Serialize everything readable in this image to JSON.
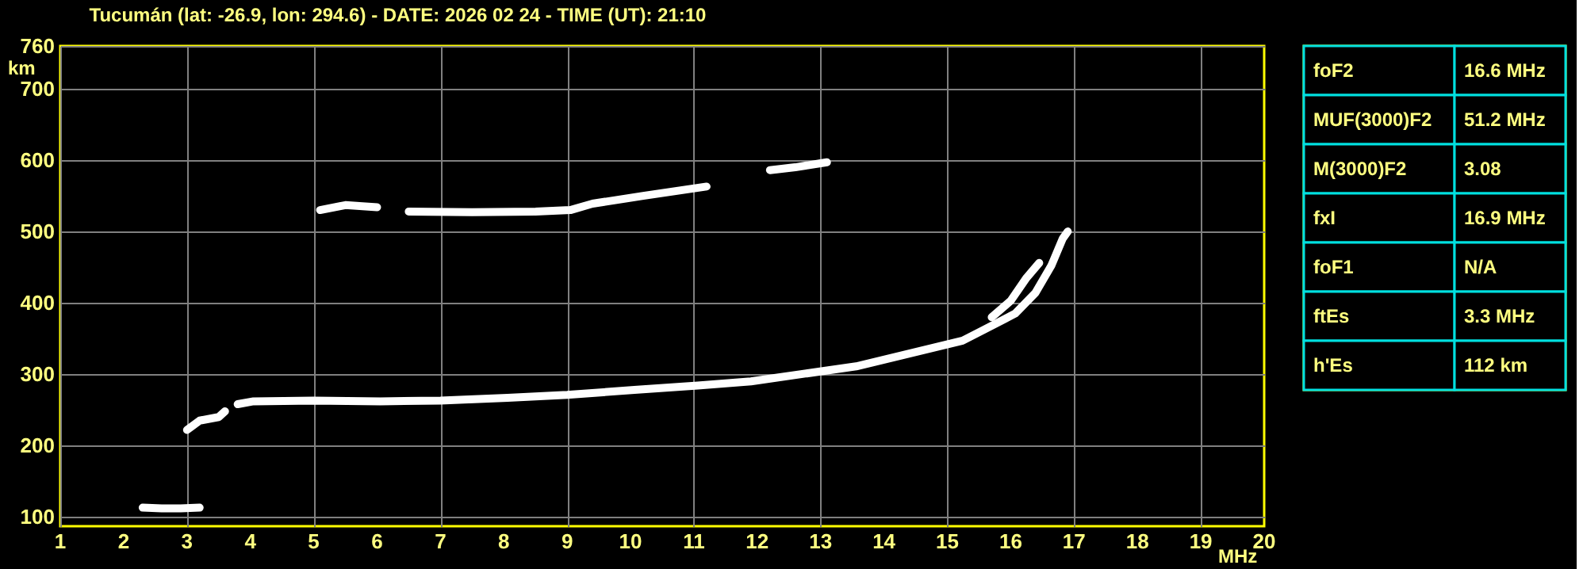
{
  "chart_data": [
    {
      "type": "line",
      "title": "Tucumán (lat: -26.9, lon: 294.6) - DATE: 2026 02 24 - TIME (UT): 21:10",
      "xlabel": "MHz",
      "ylabel": "km",
      "xlim": [
        1,
        20
      ],
      "xticks": [
        1,
        2,
        3,
        4,
        5,
        6,
        7,
        8,
        9,
        10,
        11,
        12,
        13,
        14,
        15,
        16,
        17,
        18,
        19,
        20
      ],
      "ylim": [
        87,
        760
      ],
      "yticks": [
        100,
        200,
        300,
        400,
        500,
        600,
        700,
        760
      ],
      "grid": true,
      "series": [
        {
          "color": "#ffffff",
          "x": [
            2.3,
            2.6,
            2.9,
            3.2
          ],
          "values": [
            113,
            112,
            112,
            113
          ]
        },
        {
          "color": "#ffffff",
          "x": [
            3.0,
            3.2,
            3.5,
            3.6
          ],
          "values": [
            222,
            235,
            240,
            248
          ]
        },
        {
          "color": "#ffffff",
          "x": [
            3.8,
            4.05,
            5.0,
            6.05,
            7.0,
            8.06,
            9.0,
            10.06,
            11.06,
            11.9,
            13.56,
            15.24,
            15.57,
            16.07,
            16.39,
            16.64,
            16.82,
            16.9
          ],
          "values": [
            258,
            262,
            263,
            262,
            263,
            267,
            271,
            278,
            284,
            290,
            311,
            347,
            362,
            385,
            414,
            452,
            490,
            500
          ]
        },
        {
          "color": "#ffffff",
          "x": [
            15.7,
            16.0,
            16.24,
            16.45
          ],
          "values": [
            380,
            403,
            434,
            456
          ]
        },
        {
          "color": "#ffffff",
          "x": [
            5.1,
            5.5,
            6.0
          ],
          "values": [
            530,
            537,
            534
          ]
        },
        {
          "color": "#ffffff",
          "x": [
            6.5,
            7.5,
            8.5,
            9.05,
            9.4,
            10.2,
            11.2
          ],
          "values": [
            528,
            527,
            528,
            530,
            539,
            550,
            563
          ]
        },
        {
          "color": "#ffffff",
          "x": [
            12.2,
            12.6,
            13.1
          ],
          "values": [
            586,
            590,
            597
          ]
        }
      ]
    },
    {
      "type": "other",
      "annotations": [
        "foF2",
        "16.6 MHz",
        "MUF(3000)F2",
        "51.2 MHz",
        "M(3000)F2",
        "3.08",
        "fxI",
        "16.9 MHz",
        "foF1",
        "N/A",
        "ftEs",
        "3.3 MHz",
        "h'Es",
        "112 km"
      ]
    }
  ]
}
